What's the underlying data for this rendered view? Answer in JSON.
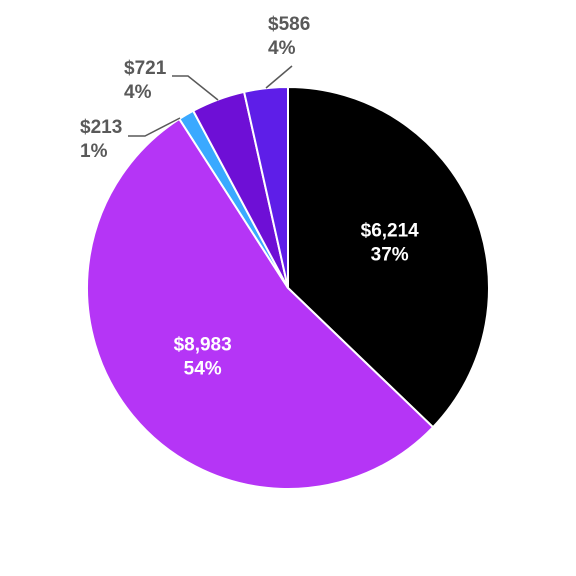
{
  "chart_data": {
    "type": "pie",
    "start_angle_deg": 0,
    "direction": "clockwise",
    "slices": [
      {
        "value_label": "$6,214",
        "percent_label": "37%",
        "value": 6214,
        "color": "#000000",
        "label_position": "inside"
      },
      {
        "value_label": "$8,983",
        "percent_label": "54%",
        "value": 8983,
        "color": "#b535f6",
        "label_position": "inside"
      },
      {
        "value_label": "$213",
        "percent_label": "1%",
        "value": 213,
        "color": "#3aa9ff",
        "label_position": "outside"
      },
      {
        "value_label": "$721",
        "percent_label": "4%",
        "value": 721,
        "color": "#6e0fd6",
        "label_position": "outside"
      },
      {
        "value_label": "$586",
        "percent_label": "4%",
        "value": 586,
        "color": "#5e1ee8",
        "label_position": "outside"
      }
    ],
    "legend": "none"
  }
}
